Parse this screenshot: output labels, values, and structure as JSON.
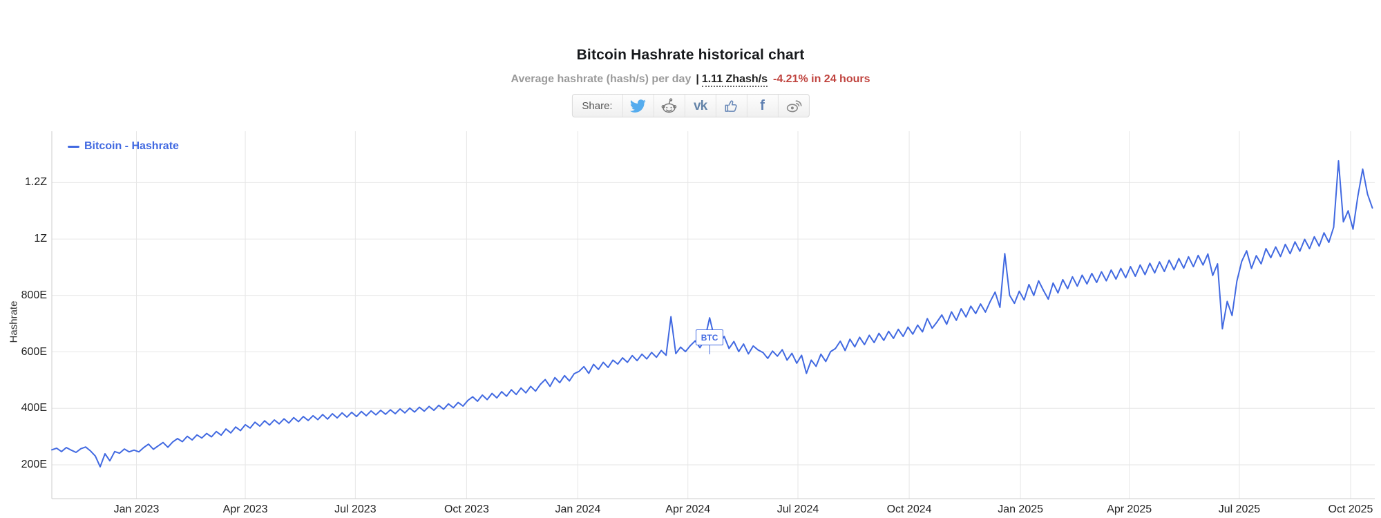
{
  "header": {
    "title": "Bitcoin Hashrate historical chart",
    "subtitle": {
      "description": "Average hashrate (hash/s) per day",
      "separator": "|",
      "current_value": "1.11 Zhash/s",
      "change_24h": "-4.21% in 24 hours"
    }
  },
  "share": {
    "label": "Share:",
    "vk_text": "vk",
    "facebook_text": "f",
    "buttons": [
      "twitter",
      "reddit",
      "vk",
      "like",
      "facebook",
      "weibo"
    ]
  },
  "colors": {
    "line": "#4169e1",
    "grid": "#e6e6e6",
    "axis": "#cccccc",
    "tick_text": "#222222",
    "title_text": "#17191c",
    "subtitle_gray": "#9a9a9a",
    "change_red": "#c0443f",
    "twitter_blue": "#55acee",
    "icon_slate": "#6787b7",
    "icon_gray": "#888888"
  },
  "chart_data": {
    "type": "line",
    "title": "Bitcoin Hashrate historical chart",
    "legend": "Bitcoin - Hashrate",
    "legend_position": "top-left",
    "xlabel": "",
    "ylabel": "Hashrate",
    "unit": "hash/s",
    "grid": true,
    "ylim": [
      80,
      1382
    ],
    "y_unit_of_values": "EH/s",
    "yticks": [
      {
        "value": 200,
        "label": "200E"
      },
      {
        "value": 400,
        "label": "400E"
      },
      {
        "value": 600,
        "label": "600E"
      },
      {
        "value": 800,
        "label": "800E"
      },
      {
        "value": 1000,
        "label": "1Z"
      },
      {
        "value": 1200,
        "label": "1.2Z"
      }
    ],
    "x_start_date": "2022-10-23",
    "x_total_days": 1094,
    "x_step_days": 4,
    "xticks": [
      {
        "day": 70,
        "label": "Jan 2023"
      },
      {
        "day": 160,
        "label": "Apr 2023"
      },
      {
        "day": 251,
        "label": "Jul 2023"
      },
      {
        "day": 343,
        "label": "Oct 2023"
      },
      {
        "day": 435,
        "label": "Jan 2024"
      },
      {
        "day": 526,
        "label": "Apr 2024"
      },
      {
        "day": 617,
        "label": "Jul 2024"
      },
      {
        "day": 709,
        "label": "Oct 2024"
      },
      {
        "day": 801,
        "label": "Jan 2025"
      },
      {
        "day": 891,
        "label": "Apr 2025"
      },
      {
        "day": 982,
        "label": "Jul 2025"
      },
      {
        "day": 1074,
        "label": "Oct 2025"
      }
    ],
    "flag": {
      "label": "BTC",
      "day": 544
    },
    "series": [
      {
        "name": "Bitcoin - Hashrate",
        "unit": "EH/s",
        "values": [
          253,
          259,
          247,
          261,
          252,
          244,
          257,
          263,
          249,
          231,
          193,
          239,
          214,
          247,
          241,
          256,
          246,
          252,
          246,
          261,
          273,
          255,
          267,
          279,
          262,
          281,
          293,
          282,
          301,
          288,
          306,
          295,
          311,
          299,
          318,
          305,
          327,
          313,
          334,
          321,
          342,
          330,
          351,
          337,
          356,
          341,
          359,
          345,
          363,
          348,
          367,
          353,
          371,
          357,
          374,
          360,
          378,
          362,
          381,
          366,
          384,
          369,
          386,
          371,
          389,
          374,
          391,
          377,
          393,
          379,
          395,
          381,
          398,
          384,
          401,
          387,
          404,
          390,
          407,
          393,
          411,
          397,
          416,
          402,
          421,
          408,
          428,
          441,
          425,
          447,
          431,
          453,
          437,
          459,
          443,
          466,
          449,
          472,
          455,
          478,
          461,
          485,
          502,
          478,
          509,
          491,
          516,
          497,
          523,
          531,
          548,
          524,
          556,
          538,
          563,
          545,
          571,
          557,
          579,
          563,
          587,
          569,
          592,
          575,
          598,
          581,
          605,
          588,
          725,
          594,
          617,
          601,
          622,
          639,
          615,
          644,
          721,
          648,
          628,
          655,
          612,
          637,
          601,
          628,
          593,
          621,
          607,
          598,
          577,
          603,
          585,
          608,
          571,
          595,
          560,
          588,
          524,
          571,
          549,
          592,
          566,
          601,
          612,
          638,
          605,
          645,
          618,
          652,
          626,
          659,
          633,
          666,
          641,
          673,
          648,
          680,
          655,
          688,
          663,
          695,
          671,
          718,
          684,
          706,
          731,
          698,
          742,
          712,
          753,
          724,
          762,
          736,
          770,
          741,
          779,
          812,
          758,
          948,
          801,
          772,
          815,
          784,
          839,
          800,
          852,
          818,
          787,
          844,
          809,
          856,
          824,
          866,
          833,
          872,
          841,
          878,
          846,
          884,
          852,
          890,
          858,
          896,
          863,
          902,
          868,
          908,
          874,
          914,
          880,
          919,
          885,
          925,
          891,
          931,
          897,
          937,
          902,
          942,
          908,
          947,
          871,
          912,
          682,
          779,
          729,
          851,
          921,
          958,
          896,
          941,
          912,
          966,
          934,
          972,
          938,
          981,
          948,
          990,
          957,
          999,
          966,
          1008,
          975,
          1022,
          988,
          1042,
          1277,
          1061,
          1100,
          1035,
          1152,
          1248,
          1159,
          1110
        ]
      }
    ]
  }
}
